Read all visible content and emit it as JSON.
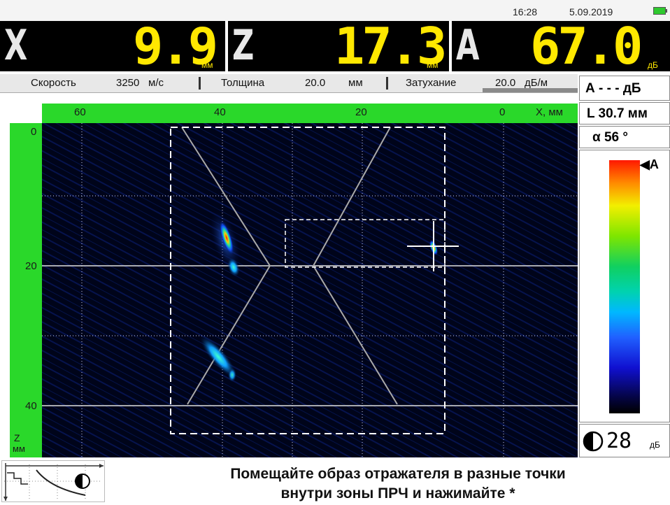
{
  "status": {
    "time": "16:28",
    "date": "5.09.2019"
  },
  "readouts": [
    {
      "letter": "X",
      "value": "9.9",
      "unit": "мм"
    },
    {
      "letter": "Z",
      "value": "17.3",
      "unit": "мм"
    },
    {
      "letter": "A",
      "value": "67.0",
      "unit": "дБ"
    }
  ],
  "params": {
    "speed_label": "Скорость",
    "speed_value": "3250",
    "speed_unit": "м/с",
    "thickness_label": "Толщина",
    "thickness_value": "20.0",
    "thickness_unit": "мм",
    "atten_label": "Затухание",
    "atten_value": "20.0",
    "atten_unit": "дБ/м"
  },
  "right_panel": {
    "a_line": "А - - -  дБ",
    "l_line": "L 30.7 мм",
    "alpha_line": "α  56  °",
    "scale_marker": "A",
    "contrast_value": "28",
    "contrast_unit": "дБ"
  },
  "axes": {
    "x_ticks": [
      "60",
      "40",
      "20",
      "0"
    ],
    "x_label": "X, мм",
    "z_ticks": [
      "0",
      "20",
      "40"
    ],
    "z_label_1": "Z",
    "z_label_2": "мм"
  },
  "hint": {
    "line1": "Помещайте образ отражателя в разные точки",
    "line2": "внутри зоны ПРЧ и нажимайте *"
  },
  "colors": {
    "readout_yellow": "#ffe800",
    "axis_green": "#2ad82a",
    "scan_bg": "#00041a"
  },
  "icons": [
    "dac-curve-icon",
    "contrast-icon",
    "battery-icon"
  ]
}
